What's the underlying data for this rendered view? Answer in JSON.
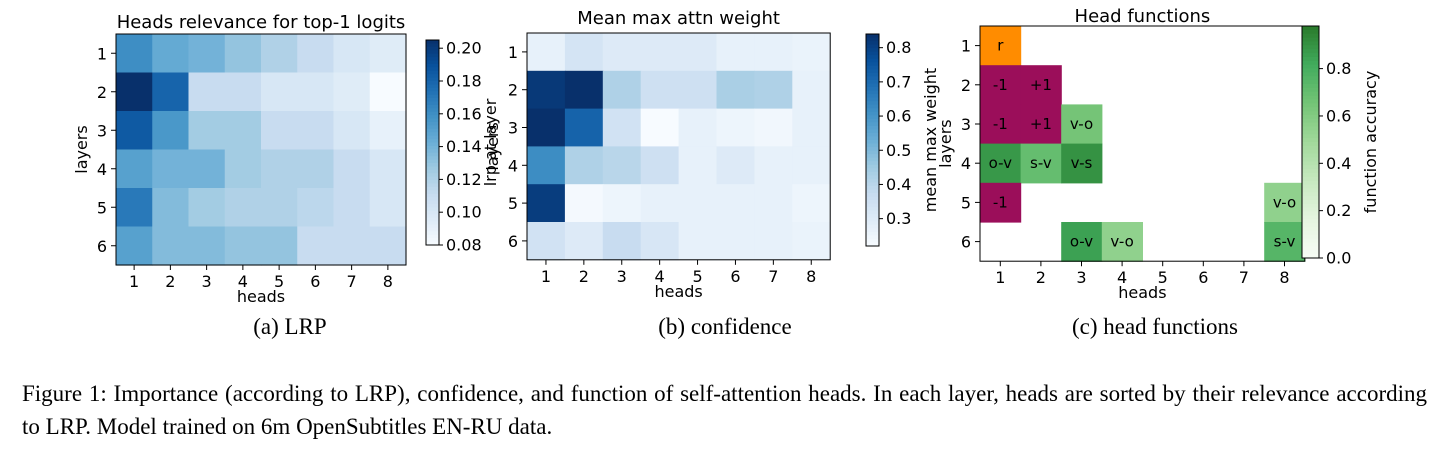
{
  "caption": "Figure 1: Importance (according to LRP), confidence, and function of self-attention heads. In each layer, heads are sorted by their relevance according to LRP. Model trained on 6m OpenSubtitles EN-RU data.",
  "colors": {
    "blue_low": "#f7fbff",
    "blue_high": "#08306b",
    "green_low": "#f7fcf5",
    "green_high": "#2a7a2a",
    "func_rel_token": "#ff8c00",
    "func_position": "#9b0e5a",
    "frame": "#000000",
    "grid_bg": "#ffffff"
  },
  "chart_data": [
    {
      "type": "heatmap",
      "subcaption": "(a) LRP",
      "title": "Heads relevance for top-1 logits",
      "xlabel": "heads",
      "ylabel": "layers",
      "x_ticks": [
        "1",
        "2",
        "3",
        "4",
        "5",
        "6",
        "7",
        "8"
      ],
      "y_ticks": [
        "1",
        "2",
        "3",
        "4",
        "5",
        "6"
      ],
      "colormap": "Blues",
      "colorbar": {
        "label": "lrp at layer",
        "range": [
          0.08,
          0.205
        ],
        "ticks": [
          "0.08",
          "0.10",
          "0.12",
          "0.14",
          "0.16",
          "0.18",
          "0.20"
        ],
        "tick_values": [
          0.08,
          0.1,
          0.12,
          0.14,
          0.16,
          0.18,
          0.2
        ]
      },
      "values": [
        [
          0.16,
          0.145,
          0.14,
          0.13,
          0.12,
          0.11,
          0.1,
          0.095
        ],
        [
          0.205,
          0.18,
          0.11,
          0.11,
          0.1,
          0.1,
          0.095,
          0.08
        ],
        [
          0.185,
          0.155,
          0.125,
          0.125,
          0.11,
          0.11,
          0.1,
          0.09
        ],
        [
          0.15,
          0.14,
          0.14,
          0.125,
          0.12,
          0.12,
          0.11,
          0.1
        ],
        [
          0.17,
          0.135,
          0.125,
          0.12,
          0.12,
          0.115,
          0.11,
          0.1
        ],
        [
          0.15,
          0.135,
          0.135,
          0.13,
          0.13,
          0.11,
          0.11,
          0.11
        ]
      ]
    },
    {
      "type": "heatmap",
      "subcaption": "(b) confidence",
      "title": "Mean max attn weight",
      "xlabel": "heads",
      "ylabel": "layers",
      "x_ticks": [
        "1",
        "2",
        "3",
        "4",
        "5",
        "6",
        "7",
        "8"
      ],
      "y_ticks": [
        "1",
        "2",
        "3",
        "4",
        "5",
        "6"
      ],
      "colormap": "Blues",
      "colorbar": {
        "label": "mean max weight",
        "range": [
          0.22,
          0.84
        ],
        "ticks": [
          "0.3",
          "0.4",
          "0.5",
          "0.6",
          "0.7",
          "0.8"
        ],
        "tick_values": [
          0.3,
          0.4,
          0.5,
          0.6,
          0.7,
          0.8
        ]
      },
      "values": [
        [
          0.27,
          0.33,
          0.3,
          0.3,
          0.3,
          0.27,
          0.27,
          0.26
        ],
        [
          0.82,
          0.84,
          0.42,
          0.35,
          0.35,
          0.43,
          0.42,
          0.27
        ],
        [
          0.84,
          0.72,
          0.34,
          0.22,
          0.27,
          0.25,
          0.24,
          0.27
        ],
        [
          0.62,
          0.42,
          0.4,
          0.35,
          0.27,
          0.3,
          0.27,
          0.27
        ],
        [
          0.81,
          0.23,
          0.25,
          0.27,
          0.27,
          0.27,
          0.27,
          0.25
        ],
        [
          0.34,
          0.3,
          0.37,
          0.32,
          0.27,
          0.27,
          0.27,
          0.26
        ]
      ]
    },
    {
      "type": "heatmap",
      "subcaption": "(c) head functions",
      "title": "Head functions",
      "xlabel": "heads",
      "ylabel": "layers",
      "x_ticks": [
        "1",
        "2",
        "3",
        "4",
        "5",
        "6",
        "7",
        "8"
      ],
      "y_ticks": [
        "1",
        "2",
        "3",
        "4",
        "5",
        "6"
      ],
      "colormap": "Greens",
      "colorbar": {
        "label": "function accuracy",
        "range": [
          0.0,
          0.98
        ],
        "ticks": [
          "0.0",
          "0.2",
          "0.4",
          "0.6",
          "0.8"
        ],
        "tick_values": [
          0.0,
          0.2,
          0.4,
          0.6,
          0.8
        ]
      },
      "cells": [
        {
          "layer": 1,
          "head": 1,
          "label": "r",
          "kind": "rare"
        },
        {
          "layer": 2,
          "head": 1,
          "label": "-1",
          "kind": "position"
        },
        {
          "layer": 2,
          "head": 2,
          "label": "+1",
          "kind": "position"
        },
        {
          "layer": 3,
          "head": 1,
          "label": "-1",
          "kind": "position"
        },
        {
          "layer": 3,
          "head": 2,
          "label": "+1",
          "kind": "position"
        },
        {
          "layer": 3,
          "head": 3,
          "label": "v-o",
          "kind": "syntactic",
          "accuracy": 0.65
        },
        {
          "layer": 4,
          "head": 1,
          "label": "o-v",
          "kind": "syntactic",
          "accuracy": 0.88
        },
        {
          "layer": 4,
          "head": 2,
          "label": "s-v",
          "kind": "syntactic",
          "accuracy": 0.7
        },
        {
          "layer": 4,
          "head": 3,
          "label": "v-s",
          "kind": "syntactic",
          "accuracy": 0.9
        },
        {
          "layer": 5,
          "head": 1,
          "label": "-1",
          "kind": "position"
        },
        {
          "layer": 5,
          "head": 8,
          "label": "v-o",
          "kind": "syntactic",
          "accuracy": 0.55
        },
        {
          "layer": 6,
          "head": 3,
          "label": "o-v",
          "kind": "syntactic",
          "accuracy": 0.85
        },
        {
          "layer": 6,
          "head": 4,
          "label": "v-o",
          "kind": "syntactic",
          "accuracy": 0.55
        },
        {
          "layer": 6,
          "head": 8,
          "label": "s-v",
          "kind": "syntactic",
          "accuracy": 0.75
        }
      ]
    }
  ]
}
